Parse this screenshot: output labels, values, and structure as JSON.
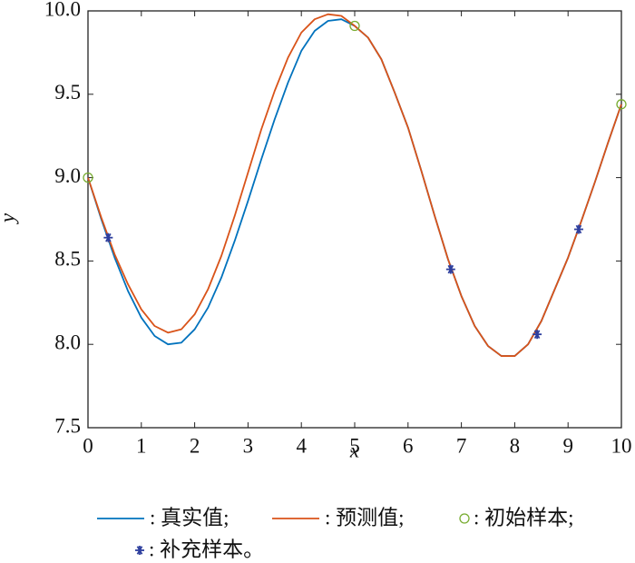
{
  "chart_data": {
    "type": "line",
    "x_label": "x",
    "y_label": "y",
    "x": [
      0,
      0.25,
      0.5,
      0.75,
      1,
      1.25,
      1.5,
      1.75,
      2,
      2.25,
      2.5,
      2.75,
      3,
      3.25,
      3.5,
      3.75,
      4,
      4.25,
      4.5,
      4.75,
      5,
      5.25,
      5.5,
      5.75,
      6,
      6.25,
      6.5,
      6.75,
      7,
      7.25,
      7.5,
      7.75,
      8,
      8.25,
      8.5,
      8.75,
      9,
      9.25,
      9.5,
      9.75,
      10
    ],
    "series": [
      {
        "name": ": 真实值;",
        "color": "#0072bd",
        "values": [
          9.0,
          8.75,
          8.52,
          8.32,
          8.16,
          8.05,
          8.0,
          8.01,
          8.09,
          8.22,
          8.4,
          8.62,
          8.86,
          9.11,
          9.35,
          9.57,
          9.76,
          9.88,
          9.94,
          9.95,
          9.91,
          9.84,
          9.71,
          9.51,
          9.3,
          9.04,
          8.77,
          8.51,
          8.29,
          8.11,
          7.99,
          7.93,
          7.93,
          8.0,
          8.14,
          8.33,
          8.52,
          8.74,
          8.97,
          9.21,
          9.44
        ]
      },
      {
        "name": ": 预测值;",
        "color": "#d95319",
        "values": [
          9.0,
          8.76,
          8.54,
          8.36,
          8.21,
          8.11,
          8.07,
          8.09,
          8.18,
          8.33,
          8.53,
          8.77,
          9.03,
          9.29,
          9.52,
          9.72,
          9.87,
          9.95,
          9.98,
          9.97,
          9.91,
          9.84,
          9.71,
          9.51,
          9.3,
          9.04,
          8.77,
          8.51,
          8.29,
          8.11,
          7.99,
          7.93,
          7.93,
          8.0,
          8.14,
          8.33,
          8.52,
          8.74,
          8.97,
          9.21,
          9.44
        ]
      },
      {
        "name": ": 初始样本;",
        "color": "#77ac30",
        "marker": "circle",
        "x": [
          0,
          5,
          10
        ],
        "values": [
          9.0,
          9.91,
          9.44
        ]
      },
      {
        "name": ": 补充样本。",
        "color": "#2e3f9e",
        "marker": "star",
        "x": [
          0.38,
          6.8,
          8.42,
          9.2
        ],
        "values": [
          8.64,
          8.45,
          8.06,
          8.69
        ]
      }
    ],
    "xlim": [
      0,
      10
    ],
    "xticks": [
      0,
      1,
      2,
      3,
      4,
      5,
      6,
      7,
      8,
      9,
      10
    ],
    "ylim": [
      7.5,
      10
    ],
    "yticks": [
      {
        "value": 7.5,
        "label": "7.5"
      },
      {
        "value": 8,
        "label": "8.0"
      },
      {
        "value": 8.5,
        "label": "8.5"
      },
      {
        "value": 9,
        "label": "9.0"
      },
      {
        "value": 9.5,
        "label": "9.5"
      },
      {
        "value": 10,
        "label": "10.0"
      }
    ]
  }
}
